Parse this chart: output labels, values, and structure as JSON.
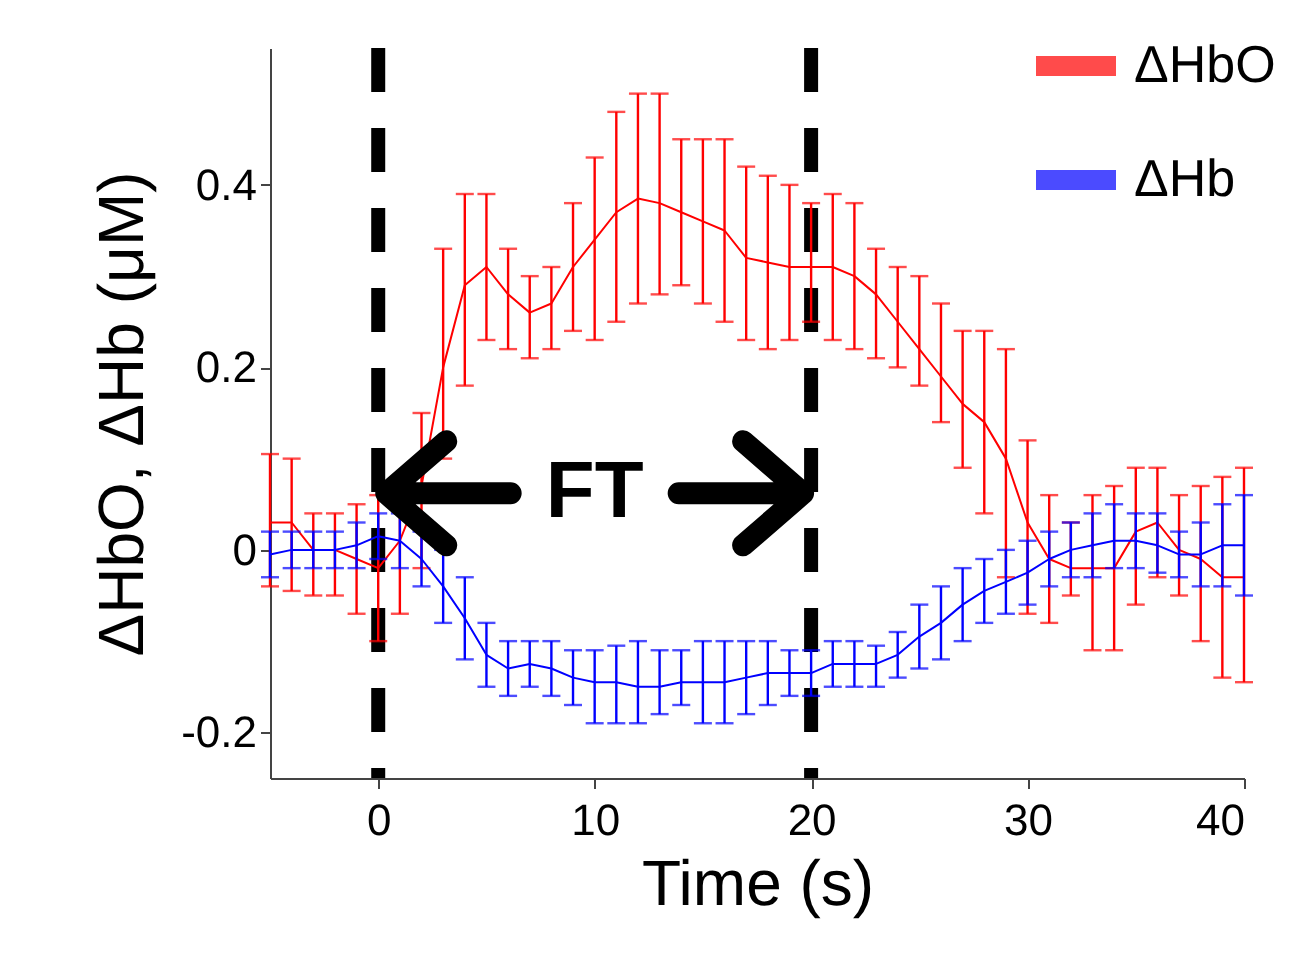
{
  "chart_data": {
    "type": "line",
    "xlabel": "Time (s)",
    "ylabel": "ΔHbO, ΔHb (μM)",
    "xlim": [
      -5,
      40
    ],
    "xticks": [
      0,
      10,
      20,
      30,
      40
    ],
    "ylim": [
      -0.25,
      0.55
    ],
    "yticks": [
      -0.2,
      0,
      0.2,
      0.4
    ],
    "x": [
      -5,
      -4,
      -3,
      -2,
      -1,
      0,
      1,
      2,
      3,
      4,
      5,
      6,
      7,
      8,
      9,
      10,
      11,
      12,
      13,
      14,
      15,
      16,
      17,
      18,
      19,
      20,
      21,
      22,
      23,
      24,
      25,
      26,
      27,
      28,
      29,
      30,
      31,
      32,
      33,
      34,
      35,
      36,
      37,
      38,
      39,
      40
    ],
    "legend": "top right",
    "series": [
      {
        "name": "ΔHbO",
        "color": "#ff0000",
        "values": [
          0.03,
          0.03,
          0.0,
          0.0,
          -0.01,
          -0.02,
          0.01,
          0.07,
          0.2,
          0.29,
          0.31,
          0.28,
          0.26,
          0.27,
          0.31,
          0.34,
          0.37,
          0.385,
          0.38,
          0.37,
          0.36,
          0.35,
          0.32,
          0.315,
          0.31,
          0.31,
          0.31,
          0.3,
          0.28,
          0.25,
          0.22,
          0.19,
          0.16,
          0.14,
          0.1,
          0.03,
          -0.01,
          -0.02,
          -0.02,
          -0.02,
          0.02,
          0.03,
          0.0,
          -0.01,
          -0.03,
          -0.03
        ],
        "errors": [
          [
            -0.04,
            0.105
          ],
          [
            -0.045,
            0.1
          ],
          [
            -0.05,
            0.04
          ],
          [
            -0.05,
            0.04
          ],
          [
            -0.07,
            0.05
          ],
          [
            -0.1,
            0.06
          ],
          [
            -0.07,
            0.08
          ],
          [
            -0.02,
            0.15
          ],
          [
            0.1,
            0.33
          ],
          [
            0.18,
            0.39
          ],
          [
            0.23,
            0.39
          ],
          [
            0.22,
            0.33
          ],
          [
            0.21,
            0.3
          ],
          [
            0.22,
            0.31
          ],
          [
            0.24,
            0.38
          ],
          [
            0.23,
            0.43
          ],
          [
            0.25,
            0.48
          ],
          [
            0.27,
            0.5
          ],
          [
            0.28,
            0.5
          ],
          [
            0.29,
            0.45
          ],
          [
            0.27,
            0.45
          ],
          [
            0.25,
            0.45
          ],
          [
            0.23,
            0.42
          ],
          [
            0.22,
            0.41
          ],
          [
            0.23,
            0.4
          ],
          [
            0.25,
            0.38
          ],
          [
            0.23,
            0.39
          ],
          [
            0.22,
            0.38
          ],
          [
            0.21,
            0.33
          ],
          [
            0.2,
            0.31
          ],
          [
            0.18,
            0.3
          ],
          [
            0.14,
            0.27
          ],
          [
            0.09,
            0.24
          ],
          [
            0.04,
            0.24
          ],
          [
            -0.03,
            0.22
          ],
          [
            -0.07,
            0.12
          ],
          [
            -0.08,
            0.06
          ],
          [
            -0.05,
            0.03
          ],
          [
            -0.11,
            0.06
          ],
          [
            -0.11,
            0.07
          ],
          [
            -0.06,
            0.09
          ],
          [
            -0.03,
            0.09
          ],
          [
            -0.05,
            0.06
          ],
          [
            -0.1,
            0.07
          ],
          [
            -0.14,
            0.08
          ],
          [
            -0.145,
            0.09
          ]
        ]
      },
      {
        "name": "ΔHb",
        "color": "#0000ff",
        "values": [
          -0.005,
          0.0,
          0.0,
          0.0,
          0.005,
          0.015,
          0.01,
          -0.01,
          -0.04,
          -0.075,
          -0.115,
          -0.13,
          -0.125,
          -0.13,
          -0.14,
          -0.145,
          -0.145,
          -0.15,
          -0.15,
          -0.145,
          -0.145,
          -0.145,
          -0.14,
          -0.135,
          -0.135,
          -0.135,
          -0.125,
          -0.125,
          -0.125,
          -0.115,
          -0.095,
          -0.08,
          -0.06,
          -0.045,
          -0.035,
          -0.025,
          -0.01,
          0.0,
          0.005,
          0.01,
          0.01,
          0.005,
          -0.005,
          -0.005,
          0.005,
          0.005
        ],
        "errors": [
          [
            -0.03,
            0.02
          ],
          [
            -0.02,
            0.02
          ],
          [
            -0.02,
            0.02
          ],
          [
            -0.02,
            0.02
          ],
          [
            -0.02,
            0.03
          ],
          [
            -0.01,
            0.04
          ],
          [
            -0.02,
            0.04
          ],
          [
            -0.04,
            0.02
          ],
          [
            -0.08,
            0.0
          ],
          [
            -0.12,
            -0.03
          ],
          [
            -0.15,
            -0.08
          ],
          [
            -0.16,
            -0.1
          ],
          [
            -0.15,
            -0.1
          ],
          [
            -0.16,
            -0.1
          ],
          [
            -0.17,
            -0.11
          ],
          [
            -0.19,
            -0.11
          ],
          [
            -0.19,
            -0.105
          ],
          [
            -0.19,
            -0.1
          ],
          [
            -0.18,
            -0.11
          ],
          [
            -0.17,
            -0.11
          ],
          [
            -0.19,
            -0.1
          ],
          [
            -0.19,
            -0.1
          ],
          [
            -0.18,
            -0.1
          ],
          [
            -0.17,
            -0.1
          ],
          [
            -0.16,
            -0.11
          ],
          [
            -0.16,
            -0.11
          ],
          [
            -0.15,
            -0.1
          ],
          [
            -0.15,
            -0.1
          ],
          [
            -0.15,
            -0.105
          ],
          [
            -0.14,
            -0.09
          ],
          [
            -0.13,
            -0.06
          ],
          [
            -0.12,
            -0.04
          ],
          [
            -0.1,
            -0.02
          ],
          [
            -0.08,
            -0.01
          ],
          [
            -0.07,
            0.0
          ],
          [
            -0.06,
            0.01
          ],
          [
            -0.04,
            0.02
          ],
          [
            -0.03,
            0.03
          ],
          [
            -0.03,
            0.04
          ],
          [
            -0.02,
            0.05
          ],
          [
            -0.02,
            0.04
          ],
          [
            -0.025,
            0.04
          ],
          [
            -0.03,
            0.02
          ],
          [
            -0.04,
            0.03
          ],
          [
            -0.04,
            0.05
          ],
          [
            -0.05,
            0.06
          ]
        ]
      }
    ],
    "ref_lines": [
      {
        "axis": "x",
        "value": 0,
        "color": "#000000",
        "line_style": "dashed"
      },
      {
        "axis": "x",
        "value": 20,
        "color": "#000000",
        "line_style": "dashed"
      }
    ],
    "annotations": [
      "FT"
    ]
  }
}
